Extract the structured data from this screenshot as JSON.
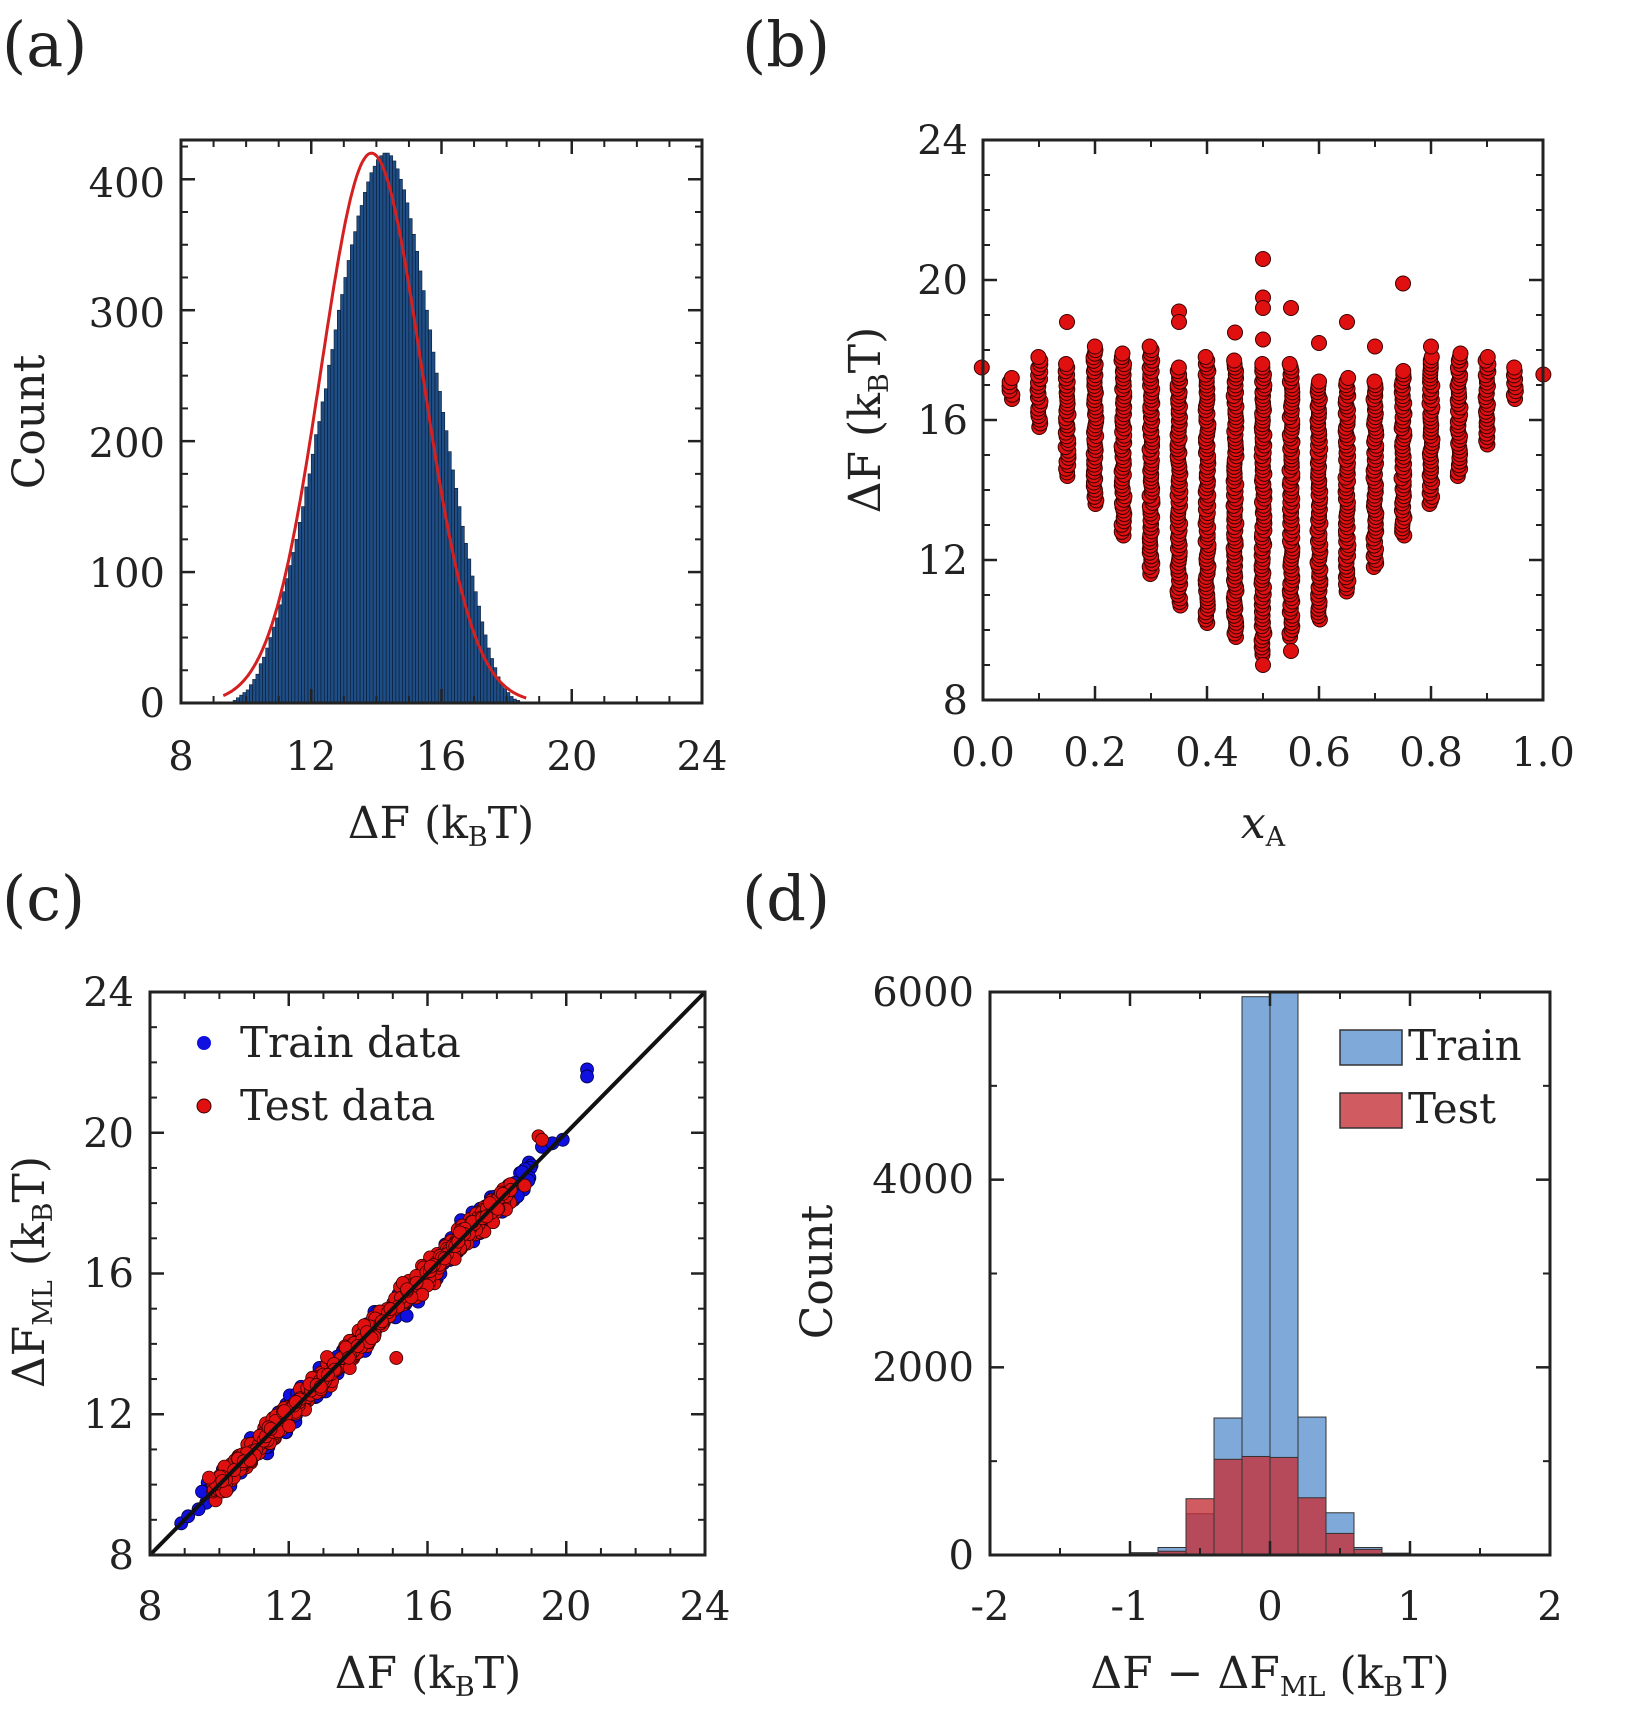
{
  "colors": {
    "bar_a": "#1f4e86",
    "fit": "#d42020",
    "marker_red": "#e01010",
    "marker_blue": "#1010e0",
    "train_hist": "#7ea9d9",
    "test_hist": "#c4323a",
    "diag": "#111111"
  },
  "chart_data": [
    {
      "panel_label": "(a)",
      "type": "bar",
      "xlabel": "ΔF (kBT)",
      "xlabel_parts": {
        "main": "ΔF (k",
        "sub": "B",
        "tail": "T)"
      },
      "ylabel": "Count",
      "xlim": [
        8,
        24
      ],
      "ylim": [
        0,
        430
      ],
      "xticks": [
        "8",
        "12",
        "16",
        "20",
        "24"
      ],
      "yticks": [
        "0",
        "100",
        "200",
        "300",
        "400"
      ],
      "bin_width": 0.1,
      "bin_start": 9.6,
      "values": [
        2,
        4,
        6,
        8,
        10,
        14,
        18,
        22,
        30,
        35,
        42,
        50,
        58,
        65,
        75,
        85,
        95,
        105,
        115,
        125,
        138,
        150,
        165,
        175,
        190,
        205,
        215,
        230,
        240,
        258,
        270,
        285,
        300,
        312,
        325,
        338,
        350,
        360,
        372,
        380,
        390,
        398,
        405,
        410,
        415,
        418,
        420,
        420,
        418,
        414,
        408,
        400,
        392,
        382,
        370,
        358,
        345,
        330,
        315,
        300,
        285,
        268,
        252,
        238,
        222,
        208,
        192,
        178,
        164,
        150,
        135,
        122,
        110,
        97,
        85,
        74,
        62,
        52,
        42,
        34,
        27,
        20,
        15,
        11,
        8,
        5,
        3,
        2
      ],
      "fit": {
        "mean": 13.85,
        "sigma": 1.55,
        "peak": 420,
        "x_range": [
          9.3,
          18.6
        ]
      }
    },
    {
      "panel_label": "(b)",
      "type": "scatter",
      "xlabel": "xA",
      "xlabel_parts": {
        "main": "x",
        "sub": "A",
        "tail": ""
      },
      "ylabel": "ΔF (kBT)",
      "ylabel_parts": {
        "main": "ΔF (k",
        "sub": "B",
        "tail": "T)"
      },
      "xlim": [
        0,
        1
      ],
      "ylim": [
        8,
        24
      ],
      "xticks": [
        "0.0",
        "0.2",
        "0.4",
        "0.6",
        "0.8",
        "1.0"
      ],
      "yticks": [
        "8",
        "12",
        "16",
        "20",
        "24"
      ],
      "columns": [
        {
          "x": 0.0,
          "min": 17.5,
          "max": 17.5
        },
        {
          "x": 0.05,
          "min": 16.6,
          "max": 17.2
        },
        {
          "x": 0.1,
          "min": 15.8,
          "max": 17.8
        },
        {
          "x": 0.15,
          "min": 14.4,
          "max": 17.6
        },
        {
          "x": 0.2,
          "min": 13.6,
          "max": 18.1
        },
        {
          "x": 0.25,
          "min": 12.7,
          "max": 17.9
        },
        {
          "x": 0.3,
          "min": 11.6,
          "max": 18.1
        },
        {
          "x": 0.35,
          "min": 10.7,
          "max": 17.5
        },
        {
          "x": 0.4,
          "min": 10.2,
          "max": 17.8
        },
        {
          "x": 0.45,
          "min": 9.8,
          "max": 17.7
        },
        {
          "x": 0.5,
          "min": 9.3,
          "max": 17.6
        },
        {
          "x": 0.55,
          "min": 9.8,
          "max": 17.6
        },
        {
          "x": 0.6,
          "min": 10.3,
          "max": 17.1
        },
        {
          "x": 0.65,
          "min": 11.1,
          "max": 17.2
        },
        {
          "x": 0.7,
          "min": 11.8,
          "max": 17.1
        },
        {
          "x": 0.75,
          "min": 12.7,
          "max": 17.4
        },
        {
          "x": 0.8,
          "min": 13.6,
          "max": 17.8
        },
        {
          "x": 0.85,
          "min": 14.4,
          "max": 17.9
        },
        {
          "x": 0.9,
          "min": 15.3,
          "max": 17.8
        },
        {
          "x": 0.95,
          "min": 16.6,
          "max": 17.5
        },
        {
          "x": 1.0,
          "min": 17.3,
          "max": 17.3
        }
      ],
      "outliers": [
        {
          "x": 0.15,
          "y": 18.8
        },
        {
          "x": 0.35,
          "y": 19.1
        },
        {
          "x": 0.35,
          "y": 18.8
        },
        {
          "x": 0.45,
          "y": 18.5
        },
        {
          "x": 0.5,
          "y": 20.6
        },
        {
          "x": 0.5,
          "y": 19.5
        },
        {
          "x": 0.5,
          "y": 19.2
        },
        {
          "x": 0.5,
          "y": 18.3
        },
        {
          "x": 0.55,
          "y": 19.2
        },
        {
          "x": 0.6,
          "y": 18.2
        },
        {
          "x": 0.65,
          "y": 18.8
        },
        {
          "x": 0.7,
          "y": 18.1
        },
        {
          "x": 0.75,
          "y": 19.9
        },
        {
          "x": 0.8,
          "y": 18.1
        },
        {
          "x": 0.5,
          "y": 9.0
        },
        {
          "x": 0.55,
          "y": 9.4
        }
      ]
    },
    {
      "panel_label": "(c)",
      "type": "scatter",
      "xlabel": "ΔF (kBT)",
      "xlabel_parts": {
        "main": "ΔF (k",
        "sub": "B",
        "tail": "T)"
      },
      "ylabel": "ΔFML (kBT)",
      "ylabel_parts": {
        "main": "ΔF",
        "sub": "ML",
        "tail": " (k",
        "sub2": "B",
        "tail2": "T)"
      },
      "xlim": [
        8,
        24
      ],
      "ylim": [
        8,
        24
      ],
      "xticks": [
        "8",
        "12",
        "16",
        "20",
        "24"
      ],
      "yticks": [
        "8",
        "12",
        "16",
        "20",
        "24"
      ],
      "legend": [
        "Train data",
        "Test data"
      ],
      "legend_position": "top-left",
      "diagonal": [
        [
          8,
          8
        ],
        [
          24,
          24
        ]
      ],
      "train_extremes": [
        {
          "x": 8.9,
          "y": 8.9
        },
        {
          "x": 9.1,
          "y": 9.1
        },
        {
          "x": 9.4,
          "y": 9.3
        },
        {
          "x": 9.5,
          "y": 9.8
        },
        {
          "x": 19.3,
          "y": 19.6
        },
        {
          "x": 19.6,
          "y": 19.7
        },
        {
          "x": 19.9,
          "y": 19.8
        },
        {
          "x": 20.6,
          "y": 21.8
        },
        {
          "x": 20.6,
          "y": 21.6
        },
        {
          "x": 18.6,
          "y": 18.2
        },
        {
          "x": 15.4,
          "y": 14.8
        },
        {
          "x": 14.2,
          "y": 13.8
        },
        {
          "x": 16.6,
          "y": 16.5
        }
      ],
      "test_extremes": [
        {
          "x": 19.2,
          "y": 19.9
        },
        {
          "x": 19.3,
          "y": 19.8
        },
        {
          "x": 15.1,
          "y": 13.6
        },
        {
          "x": 9.7,
          "y": 10.2
        },
        {
          "x": 18.8,
          "y": 18.5
        },
        {
          "x": 17.8,
          "y": 18.0
        }
      ]
    },
    {
      "panel_label": "(d)",
      "type": "bar",
      "xlabel": "ΔF − ΔFML (kBT)",
      "xlabel_parts": {
        "main": "ΔF − ΔF",
        "sub": "ML",
        "tail": " (k",
        "sub2": "B",
        "tail2": "T)"
      },
      "ylabel": "Count",
      "xlim": [
        -2,
        2
      ],
      "ylim": [
        0,
        6000
      ],
      "xticks": [
        "-2",
        "-1",
        "0",
        "1",
        "2"
      ],
      "yticks": [
        "0",
        "2000",
        "4000",
        "6000"
      ],
      "legend": [
        "Train",
        "Test"
      ],
      "legend_position": "top-right",
      "bin_edges": [
        -1.4,
        -1.2,
        -1.0,
        -0.8,
        -0.6,
        -0.4,
        -0.2,
        0.0,
        0.2,
        0.4,
        0.6,
        0.8,
        1.0,
        1.2
      ],
      "series": [
        {
          "name": "Train",
          "values": [
            5,
            10,
            25,
            80,
            440,
            1460,
            5950,
            6000,
            1470,
            450,
            80,
            20,
            5
          ]
        },
        {
          "name": "Test",
          "values": [
            2,
            5,
            15,
            40,
            600,
            1020,
            1050,
            1040,
            610,
            230,
            60,
            10,
            2
          ]
        }
      ]
    }
  ]
}
